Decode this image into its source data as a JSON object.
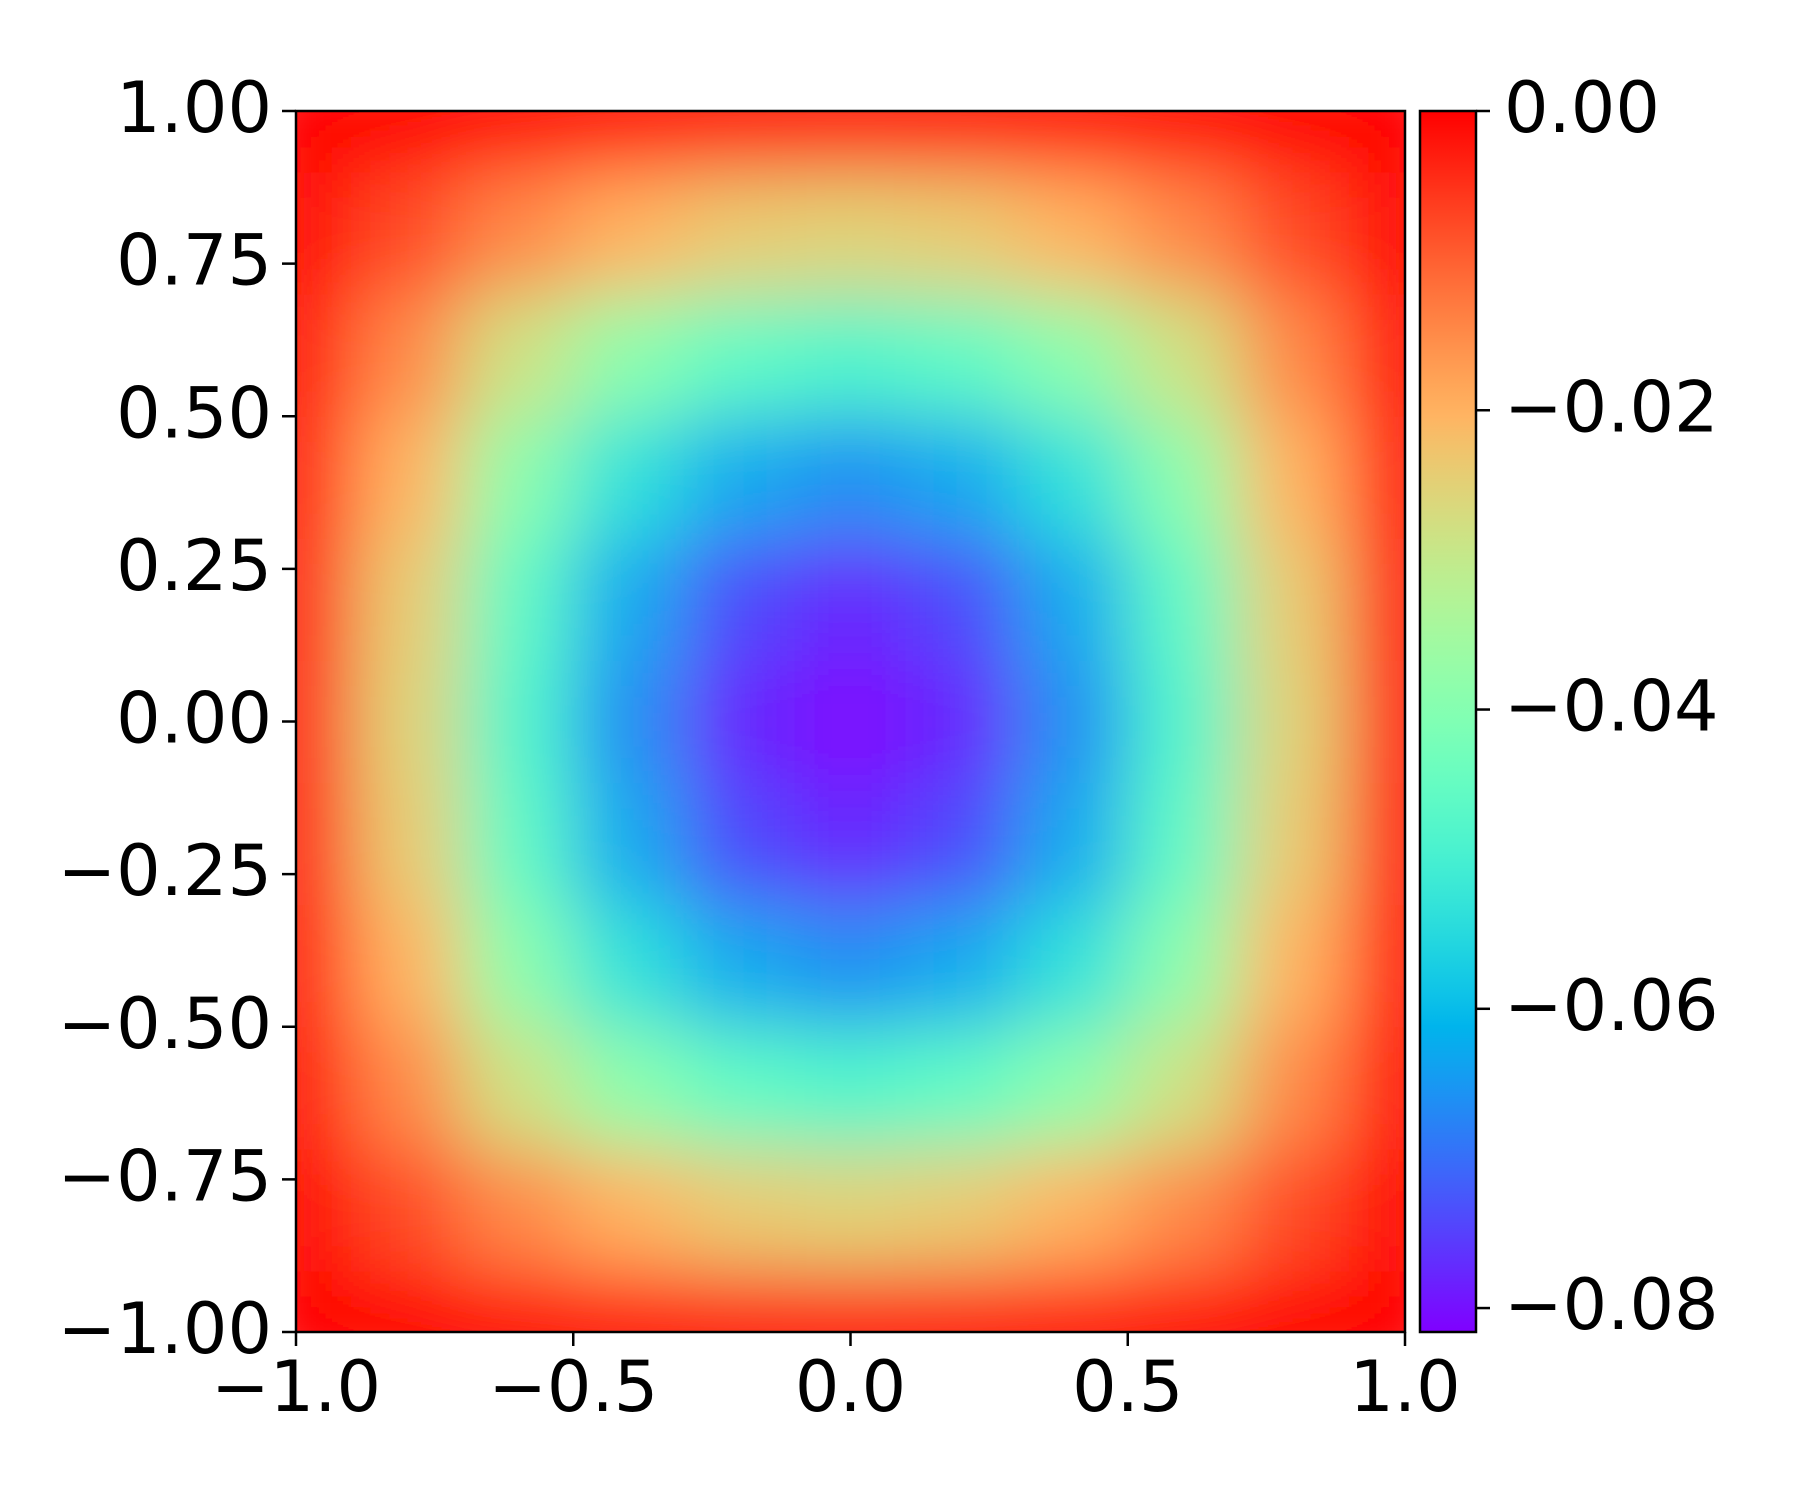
{
  "chart_data": {
    "type": "heatmap",
    "colormap": "rainbow",
    "x": [
      -1,
      -0.8,
      -0.6,
      -0.4,
      -0.2,
      0,
      0.2,
      0.4,
      0.6,
      0.8,
      1
    ],
    "y": [
      -1,
      -0.8,
      -0.6,
      -0.4,
      -0.2,
      0,
      0.2,
      0.4,
      0.6,
      0.8,
      1
    ],
    "z": [
      [
        0,
        0,
        0,
        0,
        0,
        0,
        0,
        0,
        0,
        0,
        0
      ],
      [
        0,
        -0.0078,
        -0.0148,
        -0.0204,
        -0.024,
        -0.0252,
        -0.024,
        -0.0204,
        -0.0148,
        -0.0078,
        0
      ],
      [
        0,
        -0.0148,
        -0.0282,
        -0.0388,
        -0.0456,
        -0.0479,
        -0.0456,
        -0.0388,
        -0.0282,
        -0.0148,
        0
      ],
      [
        0,
        -0.0204,
        -0.0388,
        -0.0533,
        -0.0627,
        -0.0659,
        -0.0627,
        -0.0533,
        -0.0388,
        -0.0204,
        0
      ],
      [
        0,
        -0.024,
        -0.0456,
        -0.0627,
        -0.0737,
        -0.0775,
        -0.0737,
        -0.0627,
        -0.0456,
        -0.024,
        0
      ],
      [
        0,
        -0.0252,
        -0.0479,
        -0.0659,
        -0.0775,
        -0.0815,
        -0.0775,
        -0.0659,
        -0.0479,
        -0.0252,
        0
      ],
      [
        0,
        -0.024,
        -0.0456,
        -0.0627,
        -0.0737,
        -0.0775,
        -0.0737,
        -0.0627,
        -0.0456,
        -0.024,
        0
      ],
      [
        0,
        -0.0204,
        -0.0388,
        -0.0533,
        -0.0627,
        -0.0659,
        -0.0627,
        -0.0533,
        -0.0388,
        -0.0204,
        0
      ],
      [
        0,
        -0.0148,
        -0.0282,
        -0.0388,
        -0.0456,
        -0.0479,
        -0.0456,
        -0.0388,
        -0.0282,
        -0.0148,
        0
      ],
      [
        0,
        -0.0078,
        -0.0148,
        -0.0204,
        -0.024,
        -0.0252,
        -0.024,
        -0.0204,
        -0.0148,
        -0.0078,
        0
      ],
      [
        0,
        0,
        0,
        0,
        0,
        0,
        0,
        0,
        0,
        0,
        0
      ]
    ],
    "xlim": [
      -1,
      1
    ],
    "ylim": [
      -1,
      1
    ],
    "xticks": [
      {
        "value": -1,
        "label": "−1.0"
      },
      {
        "value": -0.5,
        "label": "−0.5"
      },
      {
        "value": 0,
        "label": "0.0"
      },
      {
        "value": 0.5,
        "label": "0.5"
      },
      {
        "value": 1,
        "label": "1.0"
      }
    ],
    "yticks": [
      {
        "value": -1,
        "label": "−1.00"
      },
      {
        "value": -0.75,
        "label": "−0.75"
      },
      {
        "value": -0.5,
        "label": "−0.50"
      },
      {
        "value": -0.25,
        "label": "−0.25"
      },
      {
        "value": 0,
        "label": "0.00"
      },
      {
        "value": 0.25,
        "label": "0.25"
      },
      {
        "value": 0.5,
        "label": "0.50"
      },
      {
        "value": 0.75,
        "label": "0.75"
      },
      {
        "value": 1,
        "label": "1.00"
      }
    ],
    "clim": [
      -0.0816,
      0
    ],
    "cticks": [
      {
        "value": 0,
        "label": "0.00"
      },
      {
        "value": -0.02,
        "label": "−0.02"
      },
      {
        "value": -0.04,
        "label": "−0.04"
      },
      {
        "value": -0.06,
        "label": "−0.06"
      },
      {
        "value": -0.08,
        "label": "−0.08"
      }
    ]
  }
}
